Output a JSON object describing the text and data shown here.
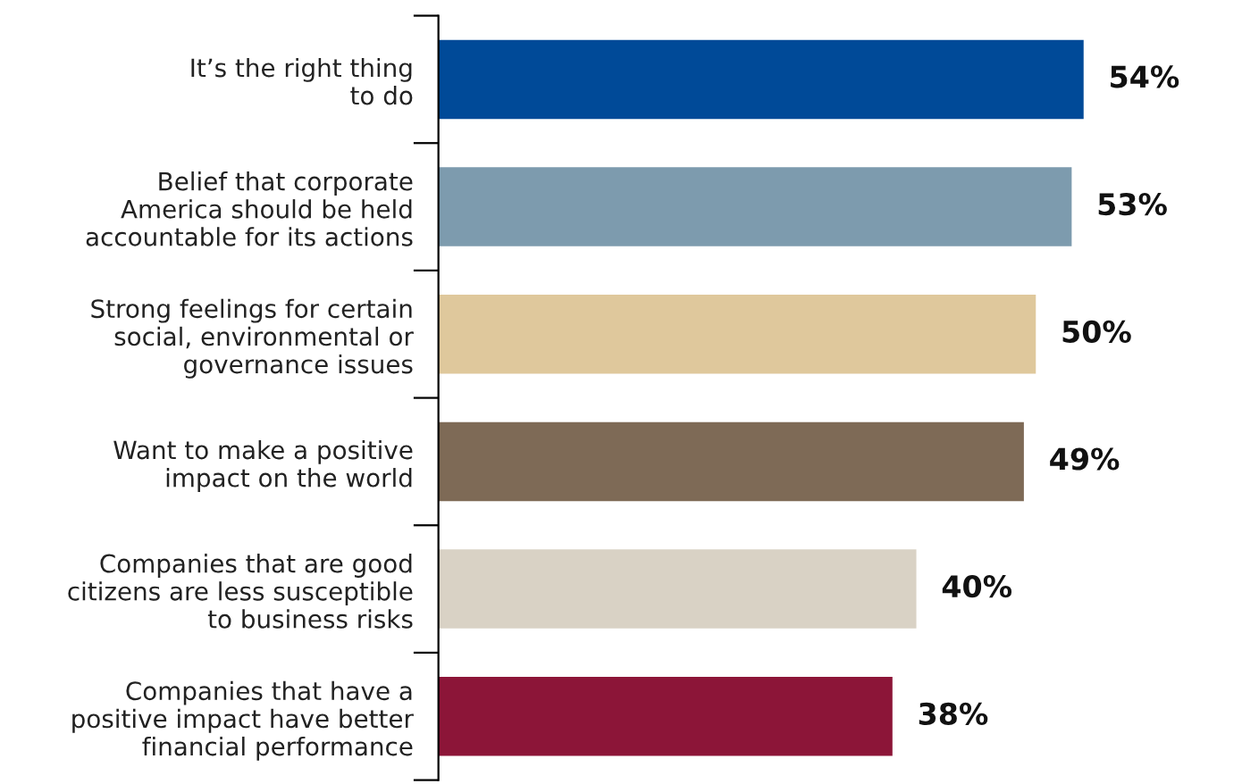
{
  "chart_data": {
    "type": "bar",
    "orientation": "horizontal",
    "categories": [
      "It’s the right thing\nto do",
      "Belief that corporate\nAmerica should be held\naccountable for its actions",
      "Strong feelings for certain\nsocial, environmental or\ngovernance issues",
      "Want to make a positive\nimpact on the world",
      "Companies that are good\ncitizens are less susceptible\nto business risks",
      "Companies that have a\npositive impact have better\nfinancial performance"
    ],
    "values": [
      54,
      53,
      50,
      49,
      40,
      38
    ],
    "colors": [
      "#004a98",
      "#7d9bae",
      "#dfc89c",
      "#7e6a56",
      "#d9d2c5",
      "#8c1538"
    ],
    "value_labels": [
      "54%",
      "53%",
      "50%",
      "49%",
      "40%",
      "38%"
    ],
    "grid": false,
    "legend": false
  }
}
